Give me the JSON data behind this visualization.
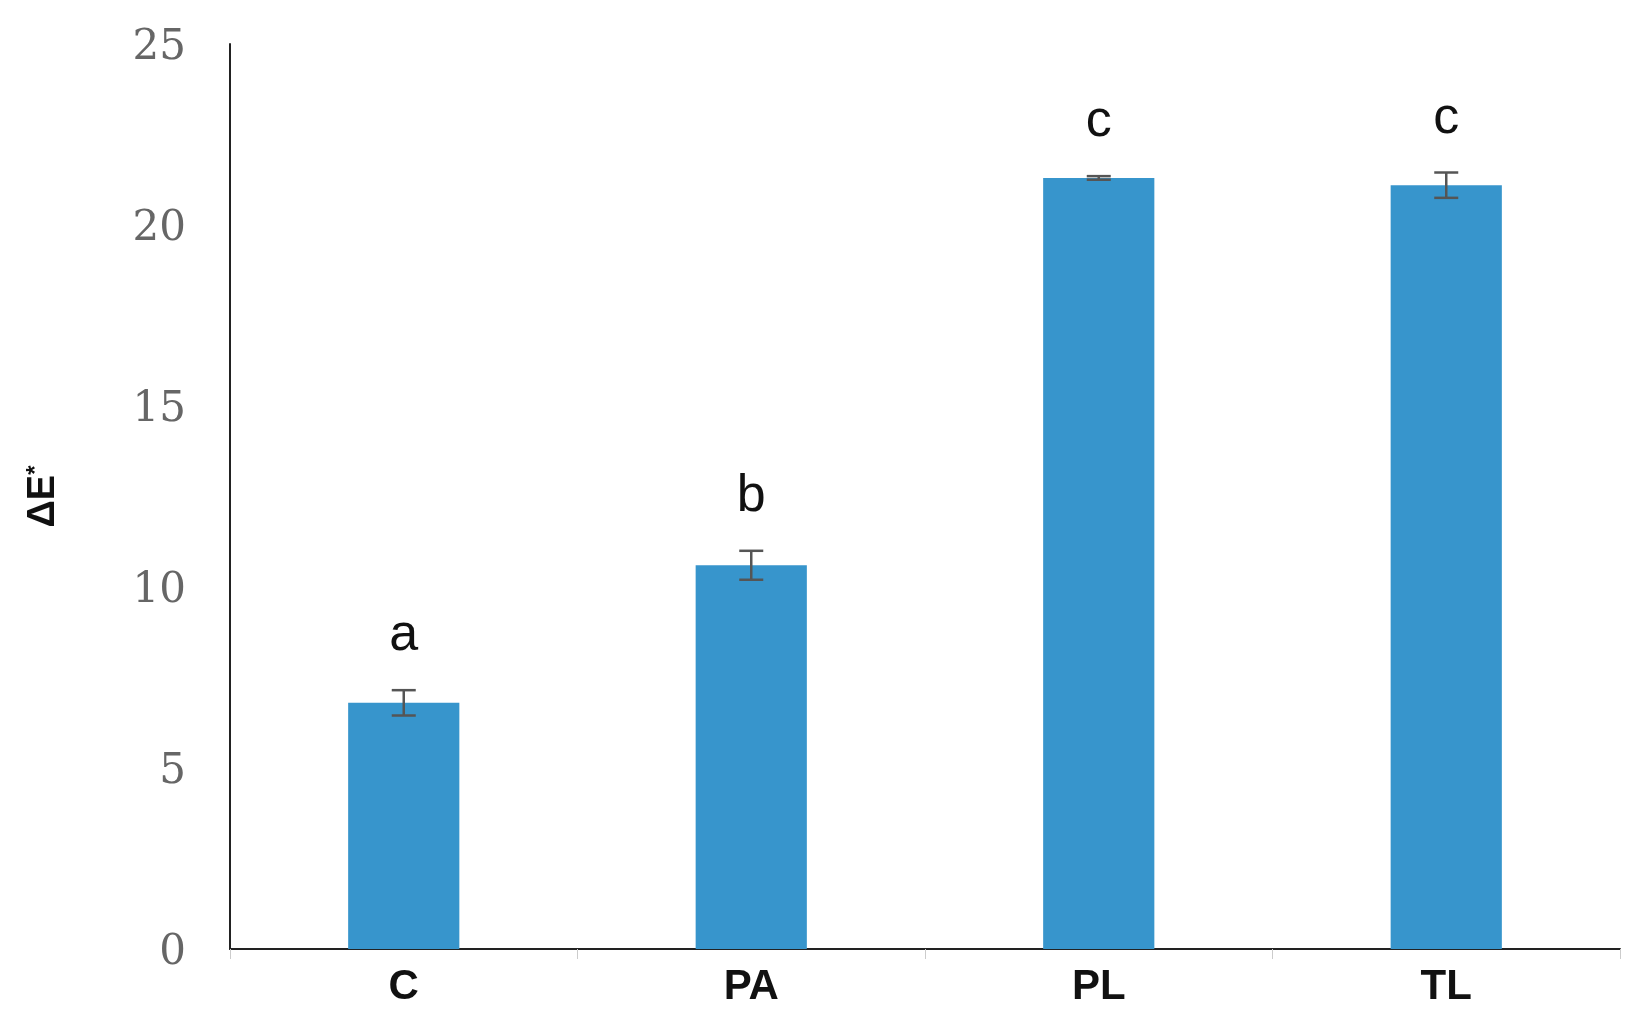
{
  "chart_data": {
    "type": "bar",
    "ylabel": "ΔE$^{*}$",
    "categories": [
      "C",
      "PA",
      "PL",
      "TL"
    ],
    "values": [
      6.8,
      10.6,
      21.3,
      21.1
    ],
    "color": "#3795cc",
    "errors": [
      0.35,
      0.4,
      0.05,
      0.35
    ],
    "ylim": [
      0,
      25
    ],
    "yticks": [
      0,
      5,
      10,
      15,
      20,
      25
    ],
    "grid": false,
    "annotations": [
      "a",
      "b",
      "c",
      "c"
    ]
  }
}
